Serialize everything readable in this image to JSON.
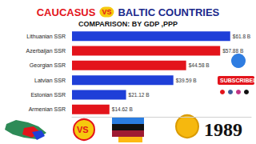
{
  "chart_data": {
    "type": "bar",
    "title": [
      "CAUCASUS",
      "VS",
      "BALTIC COUNTRIES"
    ],
    "subtitle": "COMPARISON: BY GDP ,PPP",
    "categories": [
      "Lithuanian SSR",
      "Azerbaijan SSR",
      "Georgian SSR",
      "Latvian SSR",
      "Estonian SSR",
      "Armenian SSR"
    ],
    "values": [
      61.8,
      57.88,
      44.58,
      39.59,
      21.12,
      14.62
    ],
    "value_labels": [
      "$61.8 B",
      "$57.88 B",
      "$44.58 B",
      "$39.59 B",
      "$21.12 B",
      "$14.62 B"
    ],
    "colors": [
      "#1f3fd8",
      "#e3141b",
      "#e3141b",
      "#1f3fd8",
      "#1f3fd8",
      "#e3141b"
    ],
    "xlim": [
      0,
      70
    ],
    "orientation": "horizontal",
    "data_labels": true,
    "tick_labels": "y",
    "grid": false,
    "annotations": [
      "SUBSCRIBED",
      "1989"
    ]
  }
}
